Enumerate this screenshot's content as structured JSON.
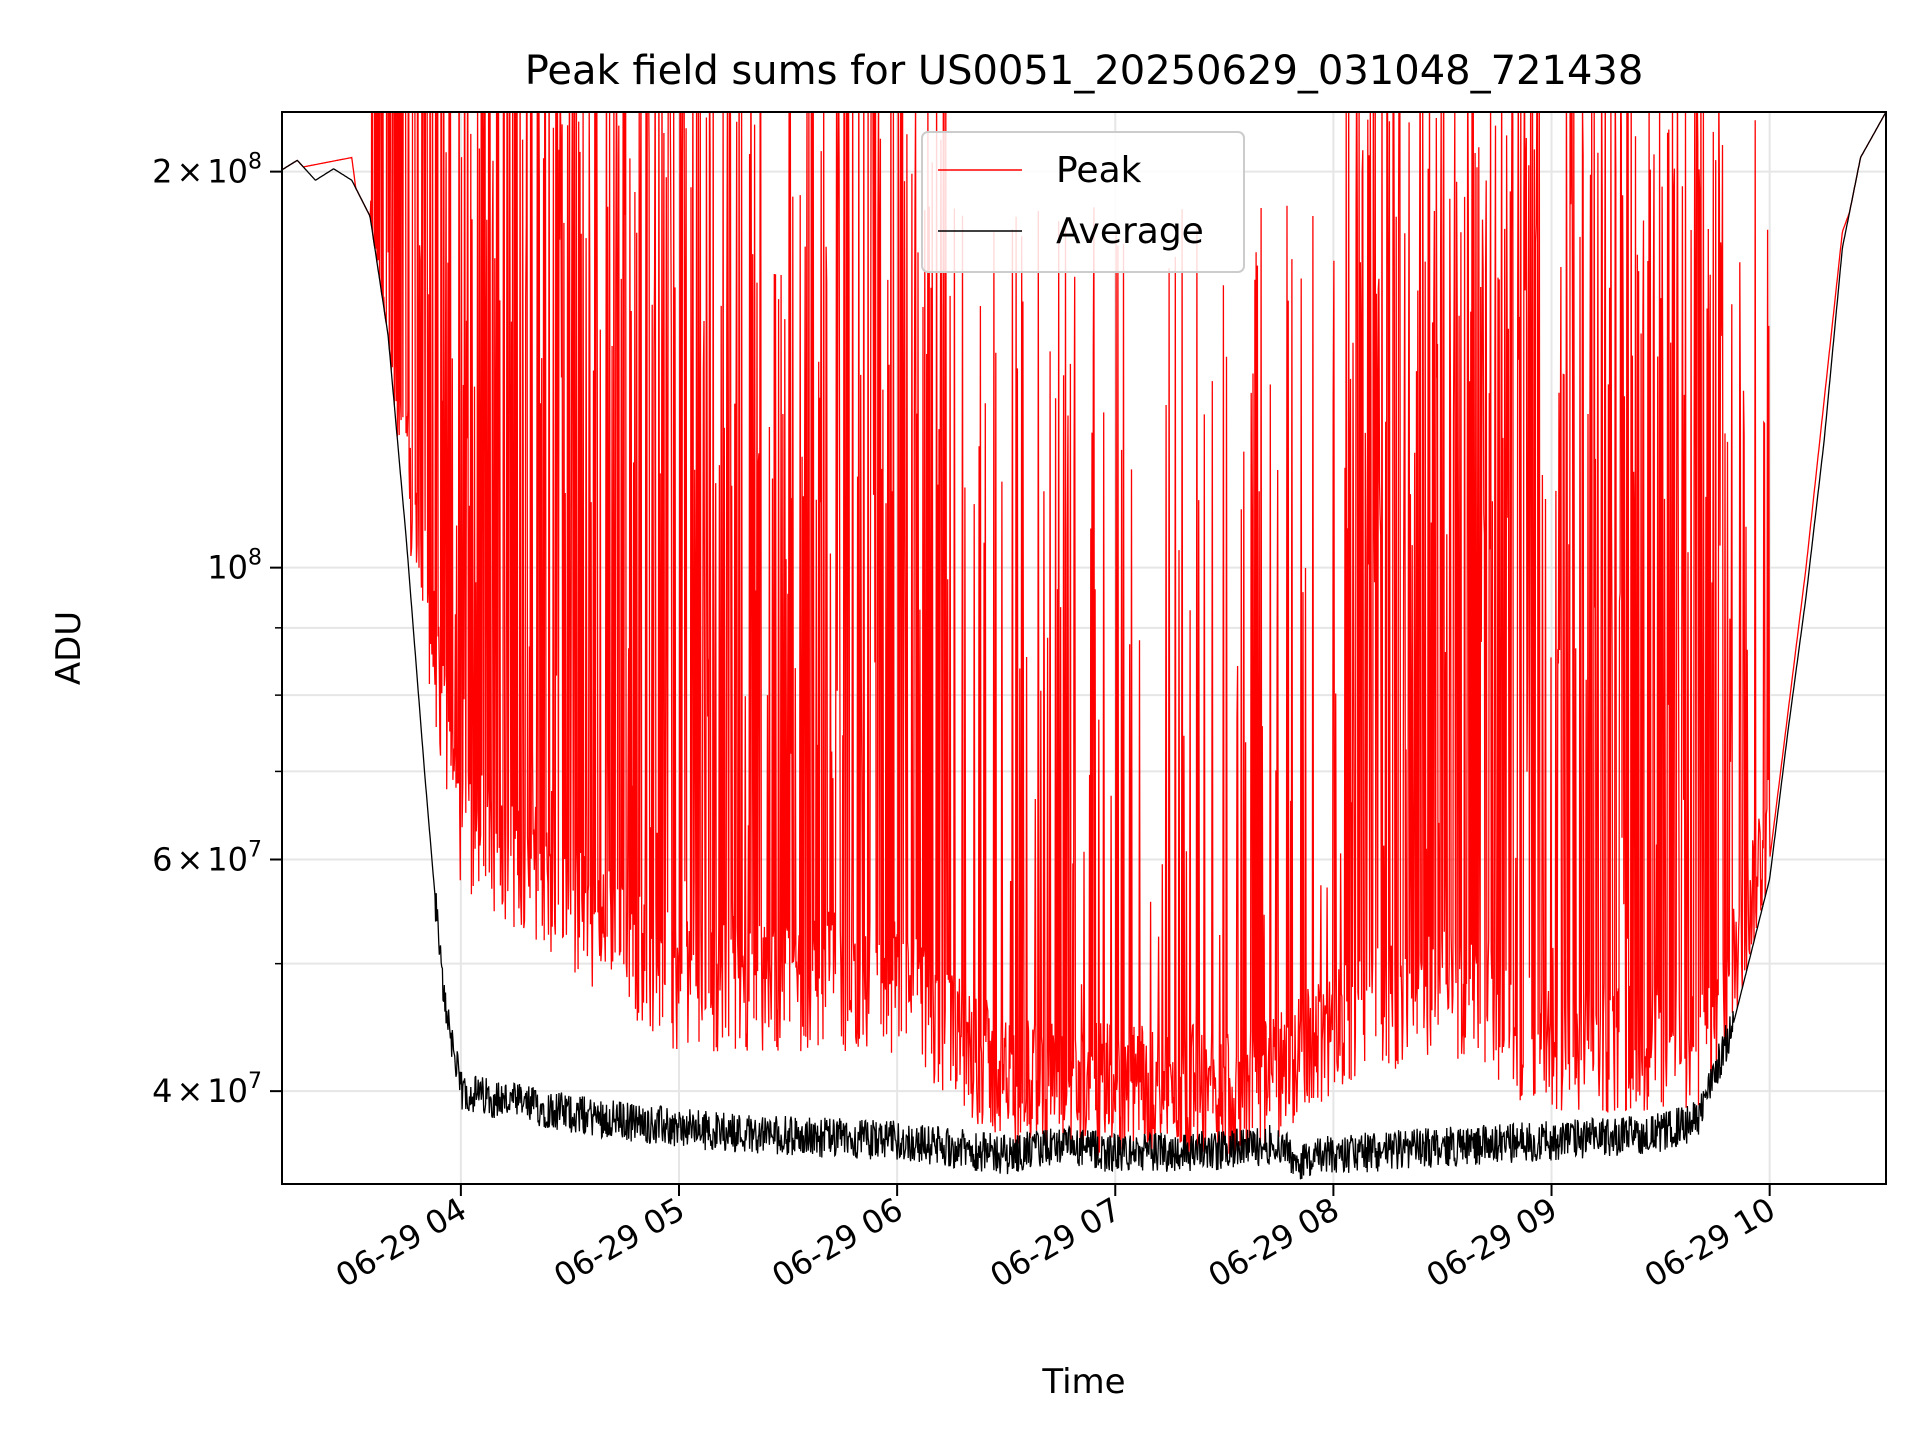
{
  "chart_data": {
    "type": "line",
    "title": "Peak field sums for US0051_20250629_031048_721438",
    "xlabel": "Time",
    "ylabel": "ADU",
    "x_range": [
      "06-29 03:10:48",
      "06-29 10:32"
    ],
    "ylim": [
      34000000,
      222000000
    ],
    "y_scale": "log",
    "grid": true,
    "legend_position": "top-center",
    "x_ticks": [
      {
        "time": "06-29 04:00",
        "label": "06-29 04"
      },
      {
        "time": "06-29 05:00",
        "label": "06-29 05"
      },
      {
        "time": "06-29 06:00",
        "label": "06-29 06"
      },
      {
        "time": "06-29 07:00",
        "label": "06-29 07"
      },
      {
        "time": "06-29 08:00",
        "label": "06-29 08"
      },
      {
        "time": "06-29 09:00",
        "label": "06-29 09"
      },
      {
        "time": "06-29 10:00",
        "label": "06-29 10"
      }
    ],
    "y_major_ticks": [
      {
        "value": 40000000,
        "mantissa": "4",
        "exponent": "7"
      },
      {
        "value": 60000000,
        "mantissa": "6",
        "exponent": "7"
      },
      {
        "value": 100000000,
        "mantissa": "",
        "exponent": "8"
      },
      {
        "value": 200000000,
        "mantissa": "2",
        "exponent": "8"
      }
    ],
    "y_minor_values": [
      50000000,
      70000000,
      80000000,
      90000000
    ],
    "series": [
      {
        "name": "Peak",
        "color": "#ff0000",
        "description_points": [
          {
            "time": "06-29 03:10",
            "value": 200000000
          },
          {
            "time": "06-29 03:30",
            "value": 205000000
          },
          {
            "time": "06-29 03:35",
            "value": 160000000
          },
          {
            "time": "06-29 03:50",
            "value": 90000000
          },
          {
            "time": "06-29 04:00",
            "value": 60000000
          },
          {
            "time": "06-29 05:00",
            "value": 45000000
          },
          {
            "time": "06-29 06:00",
            "value": 45000000
          },
          {
            "time": "06-29 06:30",
            "value": 38000000
          },
          {
            "time": "06-29 07:00",
            "value": 37500000
          },
          {
            "time": "06-29 07:40",
            "value": 37500000
          },
          {
            "time": "06-29 08:00",
            "value": 42000000
          },
          {
            "time": "06-29 08:30",
            "value": 45000000
          },
          {
            "time": "06-29 09:00",
            "value": 40000000
          },
          {
            "time": "06-29 09:45",
            "value": 41000000
          },
          {
            "time": "06-29 10:00",
            "value": 60000000
          },
          {
            "time": "06-29 10:10",
            "value": 100000000
          },
          {
            "time": "06-29 10:20",
            "value": 180000000
          },
          {
            "time": "06-29 10:32",
            "value": 222000000
          }
        ]
      },
      {
        "name": "Average",
        "color": "#000000",
        "points": [
          {
            "time": "06-29 03:10",
            "value": 200000000
          },
          {
            "time": "06-29 03:15",
            "value": 204000000
          },
          {
            "time": "06-29 03:20",
            "value": 197000000
          },
          {
            "time": "06-29 03:25",
            "value": 201000000
          },
          {
            "time": "06-29 03:30",
            "value": 197000000
          },
          {
            "time": "06-29 03:35",
            "value": 185000000
          },
          {
            "time": "06-29 03:40",
            "value": 150000000
          },
          {
            "time": "06-29 03:45",
            "value": 105000000
          },
          {
            "time": "06-29 03:50",
            "value": 70000000
          },
          {
            "time": "06-29 03:55",
            "value": 48000000
          },
          {
            "time": "06-29 04:00",
            "value": 40000000
          },
          {
            "time": "06-29 04:30",
            "value": 38500000
          },
          {
            "time": "06-29 05:00",
            "value": 37500000
          },
          {
            "time": "06-29 05:30",
            "value": 37000000
          },
          {
            "time": "06-29 06:00",
            "value": 36700000
          },
          {
            "time": "06-29 06:30",
            "value": 35800000
          },
          {
            "time": "06-29 06:45",
            "value": 36400000
          },
          {
            "time": "06-29 07:00",
            "value": 35900000
          },
          {
            "time": "06-29 07:30",
            "value": 36100000
          },
          {
            "time": "06-29 07:45",
            "value": 36500000
          },
          {
            "time": "06-29 07:50",
            "value": 35400000
          },
          {
            "time": "06-29 08:00",
            "value": 35800000
          },
          {
            "time": "06-29 08:30",
            "value": 36300000
          },
          {
            "time": "06-29 09:00",
            "value": 36700000
          },
          {
            "time": "06-29 09:30",
            "value": 37200000
          },
          {
            "time": "06-29 09:40",
            "value": 38000000
          },
          {
            "time": "06-29 09:50",
            "value": 45000000
          },
          {
            "time": "06-29 10:00",
            "value": 58000000
          },
          {
            "time": "06-29 10:05",
            "value": 75000000
          },
          {
            "time": "06-29 10:10",
            "value": 95000000
          },
          {
            "time": "06-29 10:15",
            "value": 125000000
          },
          {
            "time": "06-29 10:20",
            "value": 175000000
          },
          {
            "time": "06-29 10:25",
            "value": 205000000
          },
          {
            "time": "06-29 10:32",
            "value": 222000000
          }
        ]
      }
    ]
  }
}
